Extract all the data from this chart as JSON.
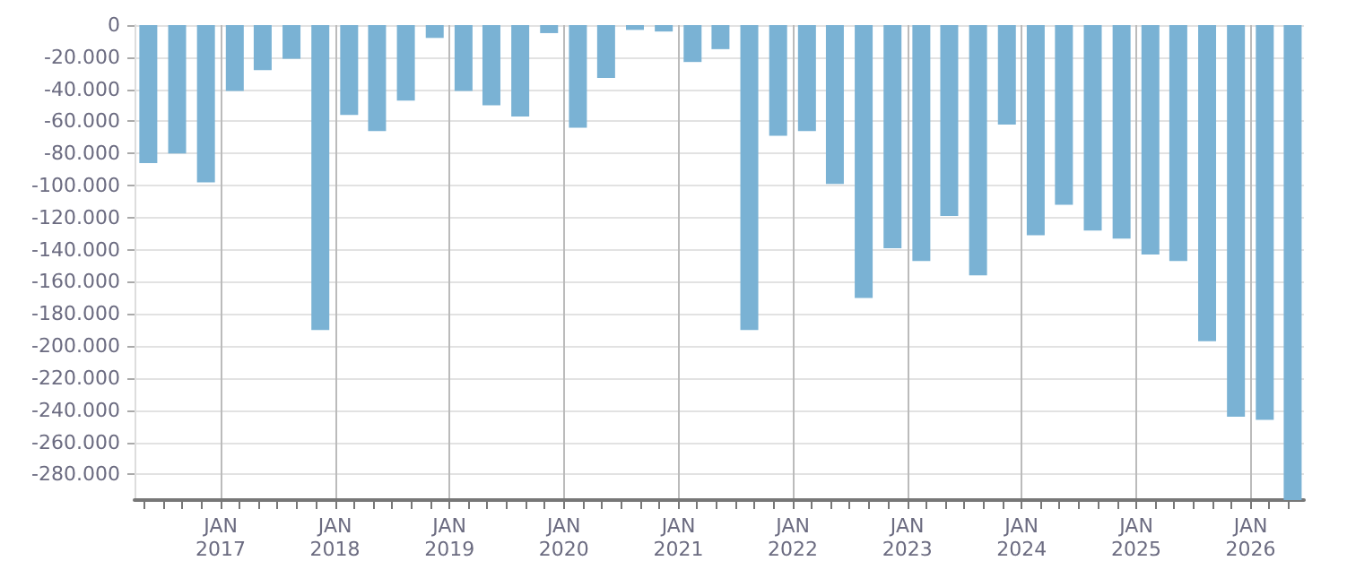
{
  "chart_data": {
    "type": "bar",
    "color": "#7ab2d4",
    "x": [
      "2016-05-15",
      "2016-08-15",
      "2016-11-15",
      "2017-02-15",
      "2017-05-15",
      "2017-08-15",
      "2017-11-15",
      "2018-02-15",
      "2018-05-15",
      "2018-08-15",
      "2018-11-15",
      "2019-02-15",
      "2019-05-15",
      "2019-08-15",
      "2019-11-15",
      "2020-02-15",
      "2020-05-15",
      "2020-08-15",
      "2020-11-15",
      "2021-02-15",
      "2021-05-15",
      "2021-08-15",
      "2021-11-15",
      "2022-02-15",
      "2022-05-15",
      "2022-08-15",
      "2022-11-15",
      "2023-02-15",
      "2023-05-15",
      "2023-08-15",
      "2023-11-15",
      "2024-02-15",
      "2024-05-15",
      "2024-08-15",
      "2024-11-15",
      "2025-02-15",
      "2025-05-15",
      "2025-08-15",
      "2025-11-15",
      "2026-02-15",
      "2026-05-15"
    ],
    "values": [
      -86000,
      -80000,
      -98000,
      -41000,
      -28000,
      -21000,
      -190000,
      -56000,
      -66000,
      -47000,
      -8000,
      -41000,
      -50000,
      -57000,
      -5000,
      -64000,
      -33000,
      -3000,
      -4000,
      -23000,
      -15000,
      -190000,
      -69000,
      -66000,
      -99000,
      -170000,
      -139000,
      -147000,
      -119000,
      -156000,
      -62000,
      -131000,
      -112000,
      -128000,
      -133000,
      -143000,
      -147000,
      -197000,
      -244000,
      -246000,
      -296000
    ],
    "xlim": [
      "2016-04-01",
      "2026-06-20"
    ],
    "xticks": [
      {
        "value": "2016-05-01",
        "label": null
      },
      {
        "value": "2016-07-01",
        "label": null
      },
      {
        "value": "2016-09-01",
        "label": null
      },
      {
        "value": "2016-11-01",
        "label": null
      },
      {
        "value": "2017-01-01",
        "label": "JAN\n2017"
      },
      {
        "value": "2017-03-01",
        "label": null
      },
      {
        "value": "2017-05-01",
        "label": null
      },
      {
        "value": "2017-07-01",
        "label": null
      },
      {
        "value": "2017-09-01",
        "label": null
      },
      {
        "value": "2017-11-01",
        "label": null
      },
      {
        "value": "2018-01-01",
        "label": "JAN\n2018"
      },
      {
        "value": "2018-03-01",
        "label": null
      },
      {
        "value": "2018-05-01",
        "label": null
      },
      {
        "value": "2018-07-01",
        "label": null
      },
      {
        "value": "2018-09-01",
        "label": null
      },
      {
        "value": "2018-11-01",
        "label": null
      },
      {
        "value": "2019-01-01",
        "label": "JAN\n2019"
      },
      {
        "value": "2019-03-01",
        "label": null
      },
      {
        "value": "2019-05-01",
        "label": null
      },
      {
        "value": "2019-07-01",
        "label": null
      },
      {
        "value": "2019-09-01",
        "label": null
      },
      {
        "value": "2019-11-01",
        "label": null
      },
      {
        "value": "2020-01-01",
        "label": "JAN\n2020"
      },
      {
        "value": "2020-03-01",
        "label": null
      },
      {
        "value": "2020-05-01",
        "label": null
      },
      {
        "value": "2020-07-01",
        "label": null
      },
      {
        "value": "2020-09-01",
        "label": null
      },
      {
        "value": "2020-11-01",
        "label": null
      },
      {
        "value": "2021-01-01",
        "label": "JAN\n2021"
      },
      {
        "value": "2021-03-01",
        "label": null
      },
      {
        "value": "2021-05-01",
        "label": null
      },
      {
        "value": "2021-07-01",
        "label": null
      },
      {
        "value": "2021-09-01",
        "label": null
      },
      {
        "value": "2021-11-01",
        "label": null
      },
      {
        "value": "2022-01-01",
        "label": "JAN\n2022"
      },
      {
        "value": "2022-03-01",
        "label": null
      },
      {
        "value": "2022-05-01",
        "label": null
      },
      {
        "value": "2022-07-01",
        "label": null
      },
      {
        "value": "2022-09-01",
        "label": null
      },
      {
        "value": "2022-11-01",
        "label": null
      },
      {
        "value": "2023-01-01",
        "label": "JAN\n2023"
      },
      {
        "value": "2023-03-01",
        "label": null
      },
      {
        "value": "2023-05-01",
        "label": null
      },
      {
        "value": "2023-07-01",
        "label": null
      },
      {
        "value": "2023-09-01",
        "label": null
      },
      {
        "value": "2023-11-01",
        "label": null
      },
      {
        "value": "2024-01-01",
        "label": "JAN\n2024"
      },
      {
        "value": "2024-03-01",
        "label": null
      },
      {
        "value": "2024-05-01",
        "label": null
      },
      {
        "value": "2024-07-01",
        "label": null
      },
      {
        "value": "2024-09-01",
        "label": null
      },
      {
        "value": "2024-11-01",
        "label": null
      },
      {
        "value": "2025-01-01",
        "label": "JAN\n2025"
      },
      {
        "value": "2025-03-01",
        "label": null
      },
      {
        "value": "2025-05-01",
        "label": null
      },
      {
        "value": "2025-07-01",
        "label": null
      },
      {
        "value": "2025-09-01",
        "label": null
      },
      {
        "value": "2025-11-01",
        "label": null
      },
      {
        "value": "2026-01-01",
        "label": "JAN\n2026"
      },
      {
        "value": "2026-03-01",
        "label": null
      },
      {
        "value": "2026-05-01",
        "label": null
      }
    ],
    "ylim": [
      -296000,
      0
    ],
    "yticks": [
      {
        "value": 0,
        "label": "0"
      },
      {
        "value": -20000,
        "label": "-20.000"
      },
      {
        "value": -40000,
        "label": "-40.000"
      },
      {
        "value": -60000,
        "label": "-60.000"
      },
      {
        "value": -80000,
        "label": "-80.000"
      },
      {
        "value": -100000,
        "label": "-100.000"
      },
      {
        "value": -120000,
        "label": "-120.000"
      },
      {
        "value": -140000,
        "label": "-140.000"
      },
      {
        "value": -160000,
        "label": "-160.000"
      },
      {
        "value": -180000,
        "label": "-180.000"
      },
      {
        "value": -200000,
        "label": "-200.000"
      },
      {
        "value": -220000,
        "label": "-220.000"
      },
      {
        "value": -240000,
        "label": "-240.000"
      },
      {
        "value": -260000,
        "label": "-260.000"
      },
      {
        "value": -280000,
        "label": "-280.000"
      }
    ],
    "grid": true
  }
}
